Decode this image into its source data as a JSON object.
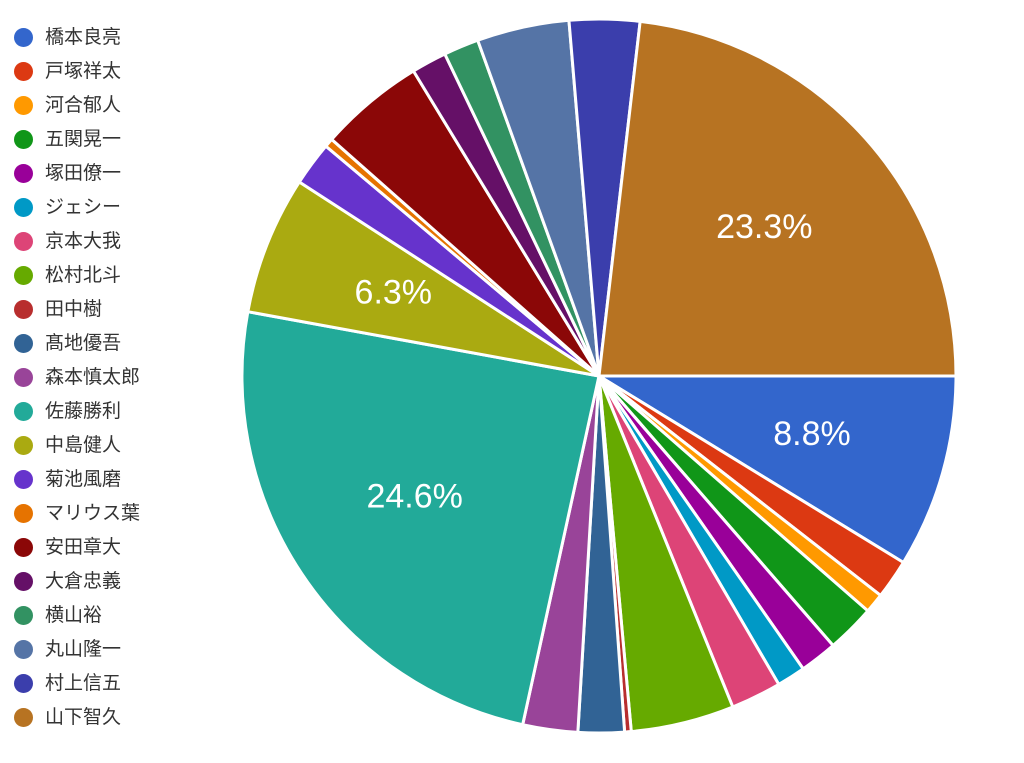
{
  "chart_data": {
    "type": "pie",
    "title": "",
    "legend_position": "left",
    "slices": [
      {
        "name": "橋本良亮",
        "value": 8.8,
        "color": "#3366cc",
        "label": "8.8%"
      },
      {
        "name": "戸塚祥太",
        "value": 1.8,
        "color": "#dc3912",
        "label": ""
      },
      {
        "name": "河合郁人",
        "value": 0.9,
        "color": "#ff9900",
        "label": ""
      },
      {
        "name": "五関晃一",
        "value": 2.2,
        "color": "#109618",
        "label": ""
      },
      {
        "name": "塚田僚一",
        "value": 1.7,
        "color": "#990099",
        "label": ""
      },
      {
        "name": "ジェシー",
        "value": 1.3,
        "color": "#0099c6",
        "label": ""
      },
      {
        "name": "京本大我",
        "value": 2.3,
        "color": "#dd4477",
        "label": ""
      },
      {
        "name": "松村北斗",
        "value": 4.7,
        "color": "#66aa00",
        "label": ""
      },
      {
        "name": "田中樹",
        "value": 0.3,
        "color": "#b82e2e",
        "label": ""
      },
      {
        "name": "髙地優吾",
        "value": 2.1,
        "color": "#316395",
        "label": ""
      },
      {
        "name": "森本慎太郎",
        "value": 2.5,
        "color": "#994499",
        "label": ""
      },
      {
        "name": "佐藤勝利",
        "value": 24.6,
        "color": "#22aa99",
        "label": "24.6%"
      },
      {
        "name": "中島健人",
        "value": 6.3,
        "color": "#aaaa11",
        "label": "6.3%"
      },
      {
        "name": "菊池風磨",
        "value": 2.0,
        "color": "#6633cc",
        "label": ""
      },
      {
        "name": "マリウス葉",
        "value": 0.4,
        "color": "#e67300",
        "label": ""
      },
      {
        "name": "安田章大",
        "value": 4.8,
        "color": "#8b0707",
        "label": ""
      },
      {
        "name": "大倉忠義",
        "value": 1.6,
        "color": "#651067",
        "label": ""
      },
      {
        "name": "横山裕",
        "value": 1.6,
        "color": "#329262",
        "label": ""
      },
      {
        "name": "丸山隆一",
        "value": 4.2,
        "color": "#5574a6",
        "label": ""
      },
      {
        "name": "村上信五",
        "value": 3.2,
        "color": "#3b3eac",
        "label": ""
      },
      {
        "name": "山下智久",
        "value": 23.3,
        "color": "#b77322",
        "label": "23.3%"
      }
    ]
  }
}
